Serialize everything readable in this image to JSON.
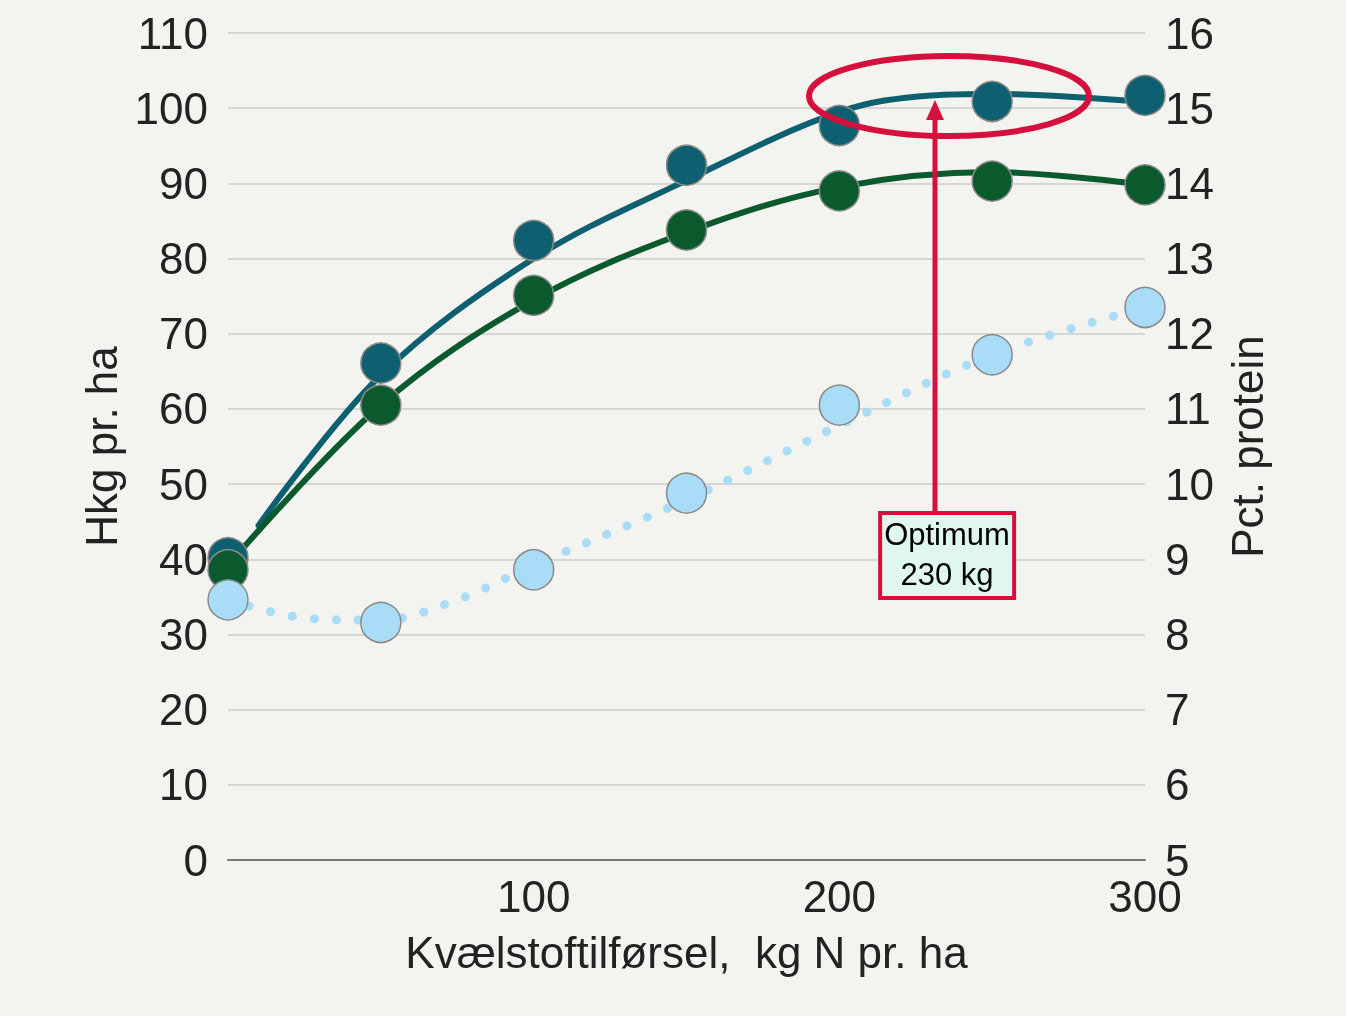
{
  "chart_data": {
    "type": "scatter",
    "xlabel": "Kvælstoftilførsel,  kg N pr. ha",
    "ylabel": "Hkg pr. ha",
    "y2label": "Pct. protein",
    "xlim": [
      0,
      300
    ],
    "xticks": [
      100,
      200,
      300
    ],
    "ylim": [
      0,
      110
    ],
    "yticks": [
      0,
      10,
      20,
      30,
      40,
      50,
      60,
      70,
      80,
      90,
      100,
      110
    ],
    "y2lim": [
      5,
      16
    ],
    "y2ticks": [
      5,
      6,
      7,
      8,
      9,
      10,
      11,
      12,
      13,
      14,
      15,
      16
    ],
    "grid": "y",
    "annotations": [
      "Optimum\n230 kg"
    ],
    "series": [
      {
        "type": "line",
        "color": "#0e6070",
        "marker": "none",
        "line_style": "solid",
        "x": [
          10,
          50,
          100,
          150,
          200,
          230,
          250,
          300
        ],
        "values": [
          44.5,
          64.5,
          80,
          90.4,
          99.5,
          101.7,
          101.9,
          100.8
        ]
      },
      {
        "type": "line",
        "color": "#0b5a2e",
        "marker": "none",
        "line_style": "solid",
        "x": [
          0,
          50,
          100,
          150,
          200,
          250,
          300
        ],
        "values": [
          39.2,
          60.5,
          74.5,
          83.5,
          89.5,
          91.5,
          89.8
        ]
      },
      {
        "type": "line",
        "color": "#a9dcf7",
        "marker": "none",
        "line_style": "dotted",
        "axis": "y2",
        "x": [
          0,
          25,
          50,
          75,
          100,
          150,
          200,
          250,
          300
        ],
        "values": [
          8.46,
          8.22,
          8.19,
          8.46,
          8.92,
          9.79,
          10.78,
          11.72,
          12.35
        ]
      },
      {
        "color": "#0e6070",
        "marker": "circle",
        "x": [
          0,
          50,
          100,
          150,
          200,
          250,
          300
        ],
        "values": [
          40.2,
          66.1,
          82.4,
          92.4,
          97.7,
          100.9,
          101.7
        ]
      },
      {
        "color": "#0b5a2e",
        "marker": "circle",
        "x": [
          0,
          50,
          100,
          150,
          200,
          250,
          300
        ],
        "values": [
          38.6,
          60.5,
          75.1,
          83.8,
          89.0,
          90.3,
          89.8
        ]
      },
      {
        "color": "#a9dcf7",
        "marker": "circle",
        "axis": "y2",
        "x": [
          0,
          50,
          100,
          150,
          200,
          250,
          300
        ],
        "values": [
          8.46,
          8.16,
          8.86,
          9.88,
          11.05,
          11.72,
          12.35
        ]
      }
    ]
  }
}
